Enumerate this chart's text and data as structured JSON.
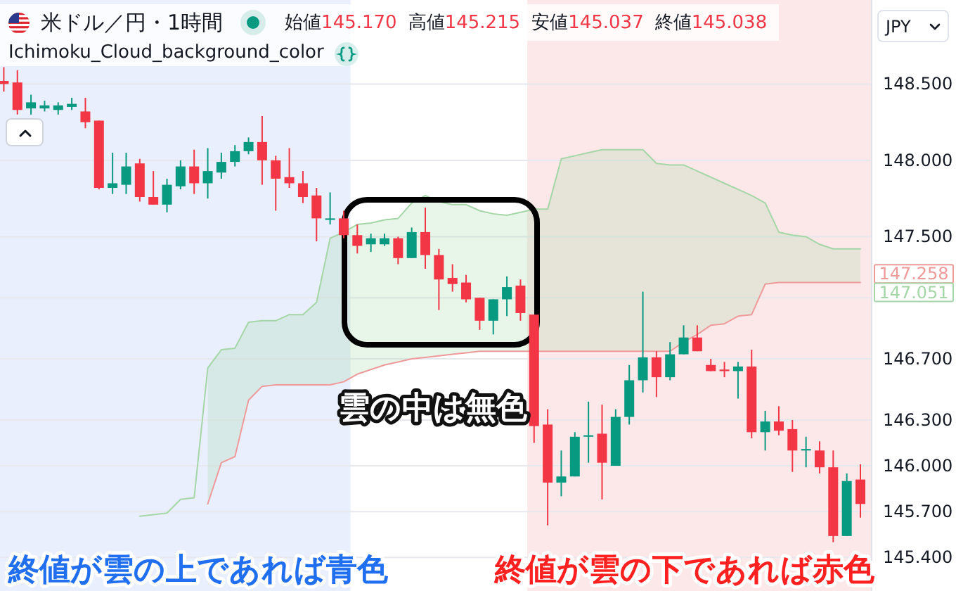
{
  "chart_data": {
    "type": "candlestick",
    "title": "米ドル／円・1時間",
    "subtitle": "Ichimoku_Cloud_background_color",
    "categories": [
      null,
      null,
      null,
      null,
      null,
      null,
      null,
      null,
      null,
      null,
      null,
      null,
      null,
      null,
      null,
      null,
      null,
      null,
      null,
      null,
      null,
      null,
      null,
      null,
      null,
      null,
      null,
      null,
      null,
      null,
      null,
      null,
      null,
      null,
      null,
      null,
      null,
      null,
      null,
      null,
      null,
      null,
      null,
      null,
      null,
      null,
      null,
      null,
      null,
      null,
      null,
      null,
      null,
      null,
      null,
      null,
      null,
      null,
      null,
      null,
      null,
      null,
      null,
      null
    ],
    "ohlc": [
      [
        148.52,
        148.61,
        148.45,
        148.5
      ],
      [
        148.51,
        148.59,
        148.3,
        148.33
      ],
      [
        148.34,
        148.43,
        148.3,
        148.38
      ],
      [
        148.34,
        148.39,
        148.32,
        148.36
      ],
      [
        148.33,
        148.38,
        148.3,
        148.36
      ],
      [
        148.35,
        148.41,
        148.33,
        148.37
      ],
      [
        148.32,
        148.41,
        148.21,
        148.25
      ],
      [
        148.26,
        148.26,
        147.81,
        147.82
      ],
      [
        147.82,
        148.05,
        147.78,
        147.85
      ],
      [
        147.84,
        148.05,
        147.78,
        147.96
      ],
      [
        147.98,
        148.01,
        147.73,
        147.76
      ],
      [
        147.76,
        147.93,
        147.71,
        147.71
      ],
      [
        147.71,
        147.88,
        147.66,
        147.84
      ],
      [
        147.83,
        148.0,
        147.81,
        147.96
      ],
      [
        147.96,
        148.07,
        147.78,
        147.85
      ],
      [
        147.85,
        148.08,
        147.75,
        147.93
      ],
      [
        147.92,
        148.05,
        147.88,
        147.99
      ],
      [
        147.99,
        148.1,
        147.96,
        148.06
      ],
      [
        148.06,
        148.15,
        148.04,
        148.12
      ],
      [
        148.12,
        148.29,
        147.84,
        148.0
      ],
      [
        148.0,
        148.03,
        147.67,
        147.88
      ],
      [
        147.89,
        148.08,
        147.82,
        147.85
      ],
      [
        147.85,
        147.93,
        147.72,
        147.76
      ],
      [
        147.77,
        147.82,
        147.47,
        147.62
      ],
      [
        147.61,
        147.79,
        147.58,
        147.62
      ],
      [
        147.62,
        147.67,
        147.49,
        147.51
      ],
      [
        147.51,
        147.58,
        147.39,
        147.44
      ],
      [
        147.45,
        147.52,
        147.4,
        147.49
      ],
      [
        147.45,
        147.52,
        147.44,
        147.49
      ],
      [
        147.49,
        147.5,
        147.32,
        147.36
      ],
      [
        147.36,
        147.56,
        147.36,
        147.53
      ],
      [
        147.53,
        147.69,
        147.29,
        147.38
      ],
      [
        147.38,
        147.42,
        147.02,
        147.22
      ],
      [
        147.23,
        147.32,
        147.14,
        147.19
      ],
      [
        147.2,
        147.25,
        147.07,
        147.09
      ],
      [
        147.1,
        147.1,
        146.89,
        146.95
      ],
      [
        146.95,
        147.09,
        146.86,
        147.09
      ],
      [
        147.09,
        147.24,
        146.98,
        147.17
      ],
      [
        147.18,
        147.22,
        146.95,
        147.0
      ],
      [
        146.99,
        146.99,
        146.15,
        146.26
      ],
      [
        146.27,
        146.37,
        145.61,
        145.89
      ],
      [
        145.89,
        146.1,
        145.8,
        145.93
      ],
      [
        145.93,
        146.22,
        145.93,
        146.19
      ],
      [
        146.19,
        146.42,
        146.02,
        146.2
      ],
      [
        146.21,
        146.4,
        145.78,
        146.02
      ],
      [
        146.0,
        146.37,
        146.0,
        146.32
      ],
      [
        146.32,
        146.66,
        146.27,
        146.56
      ],
      [
        146.56,
        147.14,
        146.48,
        146.71
      ],
      [
        146.71,
        146.75,
        146.45,
        146.58
      ],
      [
        146.58,
        146.81,
        146.56,
        146.73
      ],
      [
        146.73,
        146.92,
        146.73,
        146.84
      ],
      [
        146.84,
        146.92,
        146.75,
        146.75
      ],
      [
        146.66,
        146.7,
        146.62,
        146.62
      ],
      [
        146.63,
        146.68,
        146.58,
        146.62
      ],
      [
        146.62,
        146.68,
        146.44,
        146.65
      ],
      [
        146.65,
        146.76,
        146.18,
        146.22
      ],
      [
        146.22,
        146.36,
        146.1,
        146.29
      ],
      [
        146.29,
        146.39,
        146.2,
        146.23
      ],
      [
        146.24,
        146.3,
        145.96,
        146.1
      ],
      [
        146.1,
        146.19,
        145.99,
        146.11
      ],
      [
        146.1,
        146.16,
        145.95,
        145.99
      ],
      [
        145.99,
        146.1,
        145.5,
        145.54
      ],
      [
        145.54,
        145.95,
        145.54,
        145.9
      ],
      [
        145.91,
        146.01,
        145.66,
        145.75
      ]
    ],
    "colors": [
      "#f23645",
      "#f23645",
      "#089981",
      "#089981",
      "#089981",
      "#089981",
      "#f23645",
      "#f23645",
      "#089981",
      "#089981",
      "#f23645",
      "#f23645",
      "#089981",
      "#089981",
      "#f23645",
      "#089981",
      "#089981",
      "#089981",
      "#089981",
      "#f23645",
      "#f23645",
      "#f23645",
      "#f23645",
      "#f23645",
      "#089981",
      "#f23645",
      "#f23645",
      "#089981",
      "#089981",
      "#f23645",
      "#089981",
      "#f23645",
      "#f23645",
      "#f23645",
      "#f23645",
      "#f23645",
      "#089981",
      "#089981",
      "#f23645",
      "#f23645",
      "#f23645",
      "#089981",
      "#089981",
      "#089981",
      "#f23645",
      "#089981",
      "#089981",
      "#089981",
      "#f23645",
      "#089981",
      "#089981",
      "#f23645",
      "#f23645",
      "#f23645",
      "#089981",
      "#f23645",
      "#089981",
      "#f23645",
      "#f23645",
      "#089981",
      "#f23645",
      "#f23645",
      "#089981",
      "#f23645"
    ],
    "series": [
      {
        "type": "line",
        "color": "#a5d6a7",
        "values": [
          null,
          null,
          null,
          null,
          null,
          null,
          null,
          null,
          null,
          null,
          145.67,
          145.68,
          145.69,
          145.78,
          145.79,
          146.64,
          146.76,
          146.77,
          146.94,
          146.95,
          146.95,
          146.99,
          146.99,
          147.07,
          147.49,
          147.53,
          147.58,
          147.59,
          147.61,
          147.62,
          147.72,
          147.77,
          147.73,
          147.71,
          147.71,
          147.67,
          147.65,
          147.64,
          147.66,
          147.68,
          147.68,
          148.01,
          148.03,
          148.05,
          148.07,
          148.07,
          148.07,
          148.07,
          147.98,
          147.97,
          147.97,
          147.93,
          147.89,
          147.85,
          147.81,
          147.77,
          147.72,
          147.53,
          147.51,
          147.5,
          147.45,
          147.42,
          147.42,
          147.42
        ],
        "upper": [
          null,
          null,
          null,
          null,
          null,
          null,
          null,
          null,
          null,
          null,
          null,
          null,
          null,
          null,
          null,
          146.64,
          146.76,
          146.77,
          146.94,
          146.95,
          146.95,
          146.99,
          146.99,
          147.07,
          147.49,
          147.53,
          147.58,
          147.59,
          147.61,
          147.62,
          147.72,
          147.77,
          147.73,
          147.71,
          147.71,
          147.67,
          147.65,
          147.64,
          147.66,
          147.68,
          147.68,
          148.01,
          148.03,
          148.05,
          148.07,
          148.07,
          148.07,
          148.07,
          147.98,
          147.97,
          147.97,
          147.93,
          147.89,
          147.85,
          147.81,
          147.77,
          147.72,
          147.53,
          147.51,
          147.5,
          147.45,
          147.42,
          147.42,
          147.42
        ],
        "lower": [
          null,
          null,
          null,
          null,
          null,
          null,
          null,
          null,
          null,
          null,
          null,
          null,
          null,
          null,
          null,
          145.75,
          146.02,
          146.06,
          146.43,
          146.52,
          146.53,
          146.53,
          146.53,
          146.53,
          146.53,
          146.55,
          146.6,
          146.63,
          146.66,
          146.68,
          146.7,
          146.71,
          146.72,
          146.73,
          146.74,
          146.75,
          146.75,
          146.75,
          146.75,
          146.75,
          146.75,
          146.75,
          146.75,
          146.75,
          146.75,
          146.75,
          146.75,
          146.75,
          146.75,
          146.75,
          146.81,
          146.86,
          146.92,
          146.93,
          146.98,
          146.99,
          147.19,
          147.2,
          147.2,
          147.2,
          147.2,
          147.2,
          147.2,
          147.2
        ]
      },
      {
        "type": "line",
        "color": "#ef9a9a",
        "values": [
          null,
          null,
          null,
          null,
          null,
          null,
          null,
          null,
          null,
          null,
          null,
          null,
          null,
          null,
          null,
          145.75,
          146.02,
          146.06,
          146.43,
          146.52,
          146.53,
          146.53,
          146.53,
          146.53,
          146.53,
          146.55,
          146.6,
          146.63,
          146.66,
          146.68,
          146.7,
          146.71,
          146.72,
          146.73,
          146.74,
          146.75,
          146.75,
          146.75,
          146.75,
          146.75,
          146.75,
          146.75,
          146.75,
          146.75,
          146.75,
          146.75,
          146.75,
          146.75,
          146.75,
          146.75,
          146.81,
          146.86,
          146.92,
          146.93,
          146.98,
          146.99,
          147.19,
          147.2,
          147.2,
          147.2,
          147.2,
          147.2,
          147.2,
          147.2
        ]
      }
    ],
    "ylim": [
      145.18,
      149.05
    ],
    "yticks": [
      {
        "value": 148.5,
        "label": "148.500"
      },
      {
        "value": 148,
        "label": "148.000"
      },
      {
        "value": 147.5,
        "label": "147.500"
      },
      {
        "value": 147.1,
        "label": null
      },
      {
        "value": 146.7,
        "label": "146.700"
      },
      {
        "value": 146.3,
        "label": "146.300"
      },
      {
        "value": 146,
        "label": "146.000"
      },
      {
        "value": 145.7,
        "label": "145.700"
      },
      {
        "value": 145.4,
        "label": "145.400"
      }
    ],
    "tick_labels": "y",
    "grid": "y",
    "annotations": [
      "始値145.170",
      "高値145.215",
      "安値145.037",
      "終値145.038",
      "雲の中は無色",
      "終値が雲の上であれば青色",
      "終値が雲の下であれば赤色",
      "JPY",
      "147.258",
      "147.051"
    ]
  }
}
